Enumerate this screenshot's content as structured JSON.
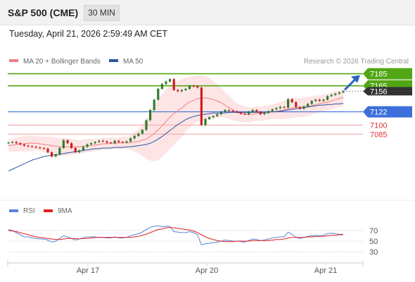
{
  "header": {
    "symbol": "S&P 500 (CME)",
    "interval": "30 MIN",
    "datetime": "Tuesday, April 21, 2026 2:59:49 AM CET"
  },
  "colors": {
    "up": "#2f7d2f",
    "down": "#cc1f1f",
    "ma20": "#f08080",
    "bollinger_fill": "#fde2e2",
    "ma50": "#2a57a3",
    "resistance": "#52a614",
    "support": "#3c6fdc",
    "weak_support": "#f5a0a0",
    "rsi": "#5b84d6",
    "rsi_ma": "#e02020",
    "arrow": "#2a67c3"
  },
  "chart_data": [
    {
      "type": "line",
      "legend": [
        {
          "name": "MA 20 + Bollinger Bands",
          "color": "#f08080"
        },
        {
          "name": "MA 50",
          "color": "#2a57a3"
        }
      ],
      "credit": "Research © 2026 Trading Central",
      "x_ticks": [
        "Apr 17",
        "Apr 20",
        "Apr 21"
      ],
      "ylim": [
        6985,
        7195
      ],
      "levels": [
        {
          "value": 7185,
          "label": "7185",
          "role": "resistance"
        },
        {
          "value": 7165,
          "label": "7165",
          "role": "resistance"
        },
        {
          "value": 7122,
          "label": "7122",
          "role": "support"
        },
        {
          "value": 7100,
          "label": "7100",
          "role": "support"
        },
        {
          "value": 7085,
          "label": "7085",
          "role": "support"
        }
      ],
      "last_price": {
        "value": 7156,
        "label": "7156"
      },
      "price_series": [
        7071,
        7072,
        7070,
        7068,
        7066,
        7065,
        7064,
        7063,
        7062,
        7061,
        7055,
        7048,
        7051,
        7062,
        7075,
        7070,
        7062,
        7055,
        7058,
        7064,
        7068,
        7070,
        7072,
        7074,
        7073,
        7071,
        7070,
        7074,
        7072,
        7071,
        7073,
        7078,
        7082,
        7086,
        7092,
        7108,
        7125,
        7142,
        7160,
        7168,
        7172,
        7176,
        7158,
        7156,
        7158,
        7160,
        7165,
        7164,
        7162,
        7100,
        7110,
        7113,
        7115,
        7118,
        7122,
        7125,
        7124,
        7123,
        7121,
        7119,
        7118,
        7122,
        7125,
        7122,
        7118,
        7120,
        7123,
        7126,
        7128,
        7130,
        7129,
        7143,
        7138,
        7130,
        7127,
        7131,
        7135,
        7140,
        7142,
        7140,
        7142,
        7148,
        7150,
        7152,
        7154,
        7156
      ],
      "ma20_series": [
        7066,
        7067,
        7068,
        7069,
        7069,
        7070,
        7070,
        7070,
        7069,
        7068,
        7067,
        7066,
        7065,
        7064,
        7064,
        7064,
        7064,
        7064,
        7064,
        7065,
        7066,
        7066,
        7067,
        7068,
        7069,
        7069,
        7070,
        7070,
        7070,
        7071,
        7071,
        7071,
        7072,
        7073,
        7075,
        7077,
        7081,
        7086,
        7092,
        7099,
        7106,
        7113,
        7119,
        7124,
        7128,
        7134,
        7138,
        7141,
        7144,
        7144,
        7145,
        7144,
        7142,
        7140,
        7137,
        7133,
        7129,
        7125,
        7121,
        7119,
        7118,
        7117,
        7118,
        7119,
        7119,
        7120,
        7121,
        7122,
        7123,
        7124,
        7125,
        7127,
        7128,
        7129,
        7129,
        7130,
        7131,
        7132,
        7134,
        7135,
        7137,
        7138,
        7140,
        7142,
        7144,
        7146
      ],
      "ma50_series": [
        7024,
        7027,
        7030,
        7033,
        7036,
        7039,
        7042,
        7044,
        7046,
        7048,
        7049,
        7050,
        7051,
        7052,
        7053,
        7054,
        7055,
        7056,
        7057,
        7058,
        7059,
        7060,
        7061,
        7061,
        7062,
        7062,
        7062,
        7063,
        7063,
        7063,
        7064,
        7064,
        7065,
        7066,
        7067,
        7068,
        7070,
        7073,
        7077,
        7081,
        7086,
        7091,
        7096,
        7101,
        7105,
        7109,
        7112,
        7114,
        7116,
        7117,
        7118,
        7119,
        7120,
        7120,
        7120,
        7120,
        7121,
        7121,
        7121,
        7121,
        7121,
        7121,
        7121,
        7121,
        7121,
        7121,
        7122,
        7122,
        7122,
        7123,
        7124,
        7125,
        7126,
        7127,
        7128,
        7129,
        7130,
        7131,
        7132,
        7133,
        7133,
        7134,
        7134,
        7135,
        7135,
        7136
      ],
      "boll_width": [
        10,
        11,
        12,
        12,
        13,
        13,
        12,
        12,
        12,
        13,
        14,
        15,
        15,
        15,
        15,
        14,
        13,
        12,
        11,
        11,
        11,
        11,
        10,
        10,
        10,
        10,
        10,
        9,
        9,
        10,
        10,
        12,
        16,
        20,
        26,
        33,
        40,
        46,
        50,
        52,
        53,
        53,
        52,
        50,
        48,
        45,
        42,
        40,
        38,
        38,
        36,
        34,
        31,
        28,
        24,
        21,
        19,
        17,
        15,
        14,
        13,
        13,
        12,
        12,
        12,
        12,
        12,
        12,
        13,
        14,
        15,
        16,
        16,
        16,
        16,
        16,
        16,
        15,
        15,
        14,
        14,
        14,
        14,
        14,
        14,
        14
      ]
    },
    {
      "type": "line",
      "legend": [
        {
          "name": "RSI",
          "color": "#5b84d6"
        },
        {
          "name": "9MA",
          "color": "#e02020"
        }
      ],
      "ylim": [
        10,
        90
      ],
      "levels": [
        70,
        50,
        30
      ],
      "rsi_series": [
        72,
        70,
        66,
        62,
        58,
        58,
        56,
        55,
        54,
        54,
        52,
        48,
        50,
        55,
        60,
        58,
        55,
        52,
        54,
        56,
        58,
        58,
        58,
        57,
        57,
        56,
        56,
        58,
        56,
        56,
        57,
        60,
        62,
        64,
        67,
        72,
        76,
        78,
        79,
        77,
        78,
        78,
        68,
        67,
        66,
        66,
        68,
        66,
        62,
        43,
        45,
        46,
        47,
        48,
        50,
        52,
        51,
        50,
        50,
        49,
        48,
        51,
        54,
        53,
        51,
        52,
        54,
        56,
        57,
        58,
        58,
        67,
        63,
        57,
        55,
        57,
        59,
        60,
        61,
        60,
        61,
        64,
        65,
        64,
        63,
        63
      ],
      "ma9_series": [
        70,
        69,
        68,
        66,
        64,
        62,
        60,
        58,
        57,
        56,
        55,
        54,
        53,
        53,
        54,
        55,
        55,
        55,
        54,
        55,
        55,
        56,
        57,
        57,
        57,
        57,
        57,
        57,
        57,
        57,
        57,
        57,
        58,
        59,
        61,
        63,
        66,
        69,
        72,
        73,
        75,
        76,
        75,
        74,
        73,
        72,
        71,
        69,
        66,
        62,
        58,
        55,
        53,
        51,
        50,
        49,
        49,
        49,
        50,
        50,
        50,
        50,
        51,
        51,
        51,
        51,
        51,
        52,
        53,
        53,
        54,
        56,
        57,
        57,
        57,
        57,
        58,
        58,
        59,
        59,
        59,
        60,
        61,
        61,
        62,
        62
      ]
    }
  ]
}
